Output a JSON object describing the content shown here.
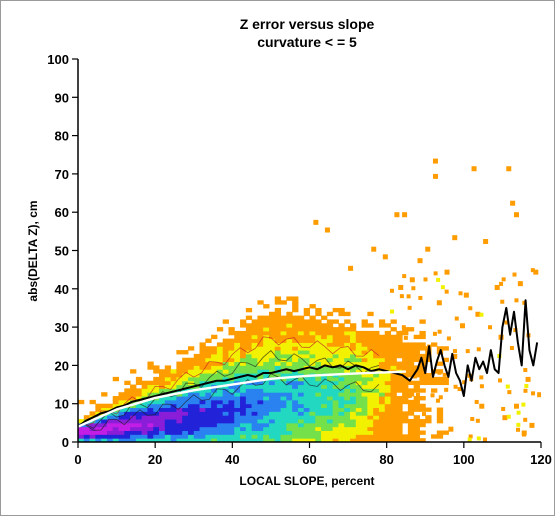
{
  "chart_data": {
    "type": "heatmap",
    "title": "Z error versus slope",
    "subtitle": "curvature < = 5",
    "xlabel": "LOCAL SLOPE, percent",
    "ylabel": "abs(DELTA Z), cm",
    "xlim": [
      0,
      120
    ],
    "ylim": [
      0,
      100
    ],
    "xticks": [
      "0",
      "20",
      "40",
      "60",
      "80",
      "100",
      "120"
    ],
    "yticks": [
      "0",
      "10",
      "20",
      "30",
      "40",
      "50",
      "60",
      "70",
      "80",
      "90",
      "100"
    ],
    "grid": false,
    "density_colors": [
      "#ff9c00",
      "#f2f200",
      "#74e14a",
      "#22d8c0",
      "#2a82f0",
      "#2222d8",
      "#8a1ed8",
      "#c21ee6"
    ],
    "series": [
      {
        "kind": "mean",
        "color": "#000000",
        "x": [
          0,
          2,
          4,
          6,
          8,
          10,
          12,
          14,
          16,
          18,
          20,
          22,
          24,
          26,
          28,
          30,
          32,
          34,
          36,
          38,
          40,
          42,
          44,
          46,
          48,
          50,
          52,
          54,
          56,
          58,
          60,
          62,
          64,
          66,
          68,
          70,
          72,
          74,
          76,
          78,
          80,
          82,
          84,
          86,
          88,
          89,
          90,
          91,
          92,
          93,
          94,
          95,
          96,
          97,
          98,
          99,
          100,
          101,
          102,
          103,
          104,
          105,
          106,
          107,
          108,
          109,
          110,
          111,
          112,
          113,
          114,
          115,
          116,
          117,
          118,
          119
        ],
        "y": [
          4,
          5.5,
          6.5,
          7.5,
          8,
          9,
          9.5,
          10.5,
          11,
          11.5,
          12,
          12.5,
          13,
          13.5,
          14,
          14.5,
          15,
          15.5,
          16,
          16,
          16.5,
          17,
          17.5,
          17,
          18,
          18,
          18.5,
          19,
          18.5,
          19,
          19.5,
          19,
          20,
          19.5,
          20,
          19,
          20,
          19.5,
          18.5,
          19,
          18.5,
          18,
          17.5,
          16,
          19,
          22,
          18,
          25,
          17,
          21,
          24,
          20,
          17,
          23,
          18,
          16,
          12,
          20,
          16,
          22,
          19,
          21,
          18,
          24,
          19,
          18,
          30,
          35,
          28,
          34,
          26,
          20,
          37,
          24,
          20,
          26
        ]
      },
      {
        "kind": "fit",
        "color": "#ffffff",
        "x": [
          0,
          10,
          20,
          30,
          40,
          50,
          60,
          70,
          80,
          85
        ],
        "y": [
          4,
          8.5,
          11.5,
          13.5,
          15,
          16.5,
          17.3,
          17.8,
          18.2,
          18.4
        ]
      }
    ]
  }
}
